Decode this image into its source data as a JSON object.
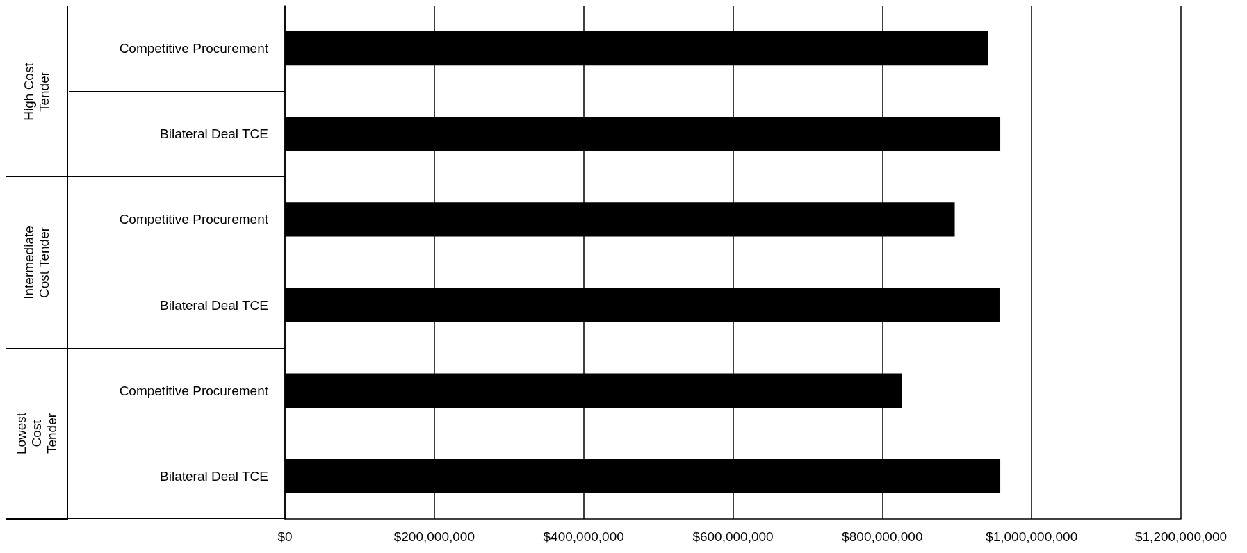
{
  "chart_data": {
    "type": "bar",
    "orientation": "horizontal",
    "categories": [
      "Competitive Procurement",
      "Bilateral Deal TCE",
      "Competitive Procurement",
      "Bilateral Deal TCE",
      "Competitive Procurement",
      "Bilateral Deal TCE"
    ],
    "values": [
      942000000,
      958000000,
      897000000,
      957000000,
      826000000,
      958000000
    ],
    "color": "#000000",
    "xlim": [
      0,
      1200000000
    ],
    "xticks": [
      {
        "value": 0,
        "label": "$0"
      },
      {
        "value": 200000000,
        "label": "$200,000,000"
      },
      {
        "value": 400000000,
        "label": "$400,000,000"
      },
      {
        "value": 600000000,
        "label": "$600,000,000"
      },
      {
        "value": 800000000,
        "label": "$800,000,000"
      },
      {
        "value": 1000000000,
        "label": "$1,000,000,000"
      },
      {
        "value": 1200000000,
        "label": "$1,200,000,000"
      }
    ],
    "grid": "x",
    "annotations": [
      "High Cost Tender",
      "Intermediate Cost Tender",
      "Lowest Cost Tender"
    ]
  }
}
